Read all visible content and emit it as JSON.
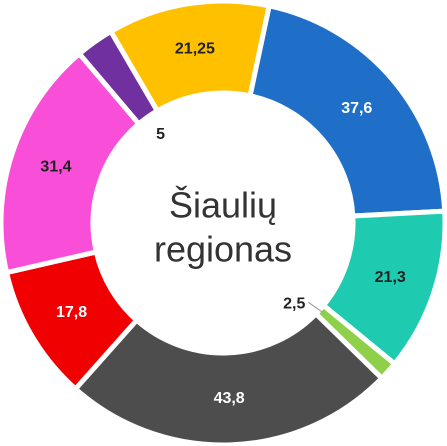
{
  "chart_data": {
    "type": "donut",
    "center_text": [
      "Šiaulių",
      "regionas"
    ],
    "values": [
      37.6,
      21.3,
      2.5,
      43.8,
      17.8,
      31.4,
      5,
      21.25
    ],
    "value_labels": [
      "37,6",
      "21,3",
      "2,5",
      "43,8",
      "17,8",
      "31,4",
      "5",
      "21,25"
    ],
    "colors": [
      "#1f6fc8",
      "#1fcbb0",
      "#8ed04a",
      "#4d4d4d",
      "#f00000",
      "#f94ed8",
      "#7030a0",
      "#ffc000"
    ]
  }
}
